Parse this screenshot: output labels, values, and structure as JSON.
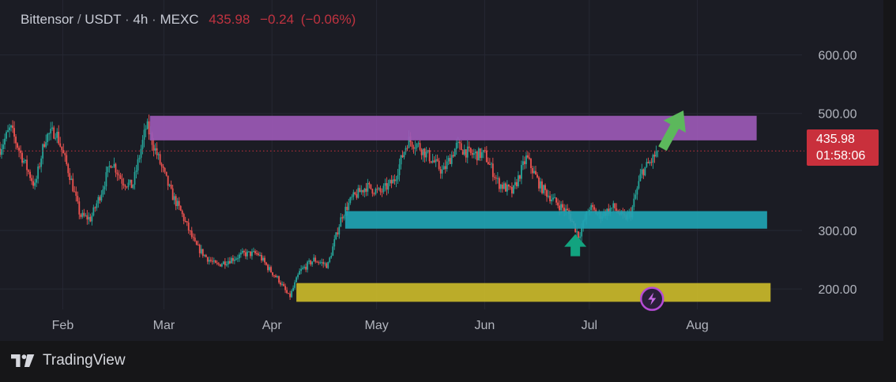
{
  "header": {
    "symbol": "Bittensor",
    "quote": "USDT",
    "interval": "4h",
    "exchange": "MEXC",
    "last_price": "435.98",
    "change": "−0.24",
    "change_pct": "(−0.06%)"
  },
  "price_tag": {
    "price": "435.98",
    "countdown": "01:58:06"
  },
  "footer": {
    "brand": "TradingView"
  },
  "colors": {
    "background": "#1b1c24",
    "up_candle": "#26a69a",
    "down_candle": "#ef5350",
    "last_price": "#c9303c",
    "zone_resistance": "#9b59b6",
    "zone_support": "#1fa3b3",
    "zone_demand": "#c9b82a",
    "arrow_up_projection": "#5cb85c",
    "arrow_up_marker": "#12a37f"
  },
  "icons": [
    "tradingview-logo-icon",
    "lightning-icon",
    "arrow-up-icon"
  ],
  "chart_data": {
    "type": "candlestick",
    "title": "Bittensor / USDT · 4h · MEXC",
    "ylim": [
      165,
      640
    ],
    "y_ticks": [
      "200.00",
      "300.00",
      "500.00",
      "600.00"
    ],
    "x_labels": [
      {
        "label": "Feb",
        "date": "2024-02-01"
      },
      {
        "label": "Mar",
        "date": "2024-03-01"
      },
      {
        "label": "Apr",
        "date": "2024-04-01"
      },
      {
        "label": "May",
        "date": "2024-05-01"
      },
      {
        "label": "Jun",
        "date": "2024-06-01"
      },
      {
        "label": "Jul",
        "date": "2024-07-01"
      },
      {
        "label": "Aug",
        "date": "2024-08-01"
      }
    ],
    "xlim": [
      "2024-01-14",
      "2024-08-31"
    ],
    "last_price": 435.98,
    "price_path": [
      [
        "2024-01-14",
        440
      ],
      [
        "2024-01-17",
        475
      ],
      [
        "2024-01-20",
        430
      ],
      [
        "2024-01-24",
        375
      ],
      [
        "2024-01-27",
        460
      ],
      [
        "2024-01-30",
        470
      ],
      [
        "2024-02-03",
        395
      ],
      [
        "2024-02-06",
        325
      ],
      [
        "2024-02-09",
        320
      ],
      [
        "2024-02-12",
        365
      ],
      [
        "2024-02-15",
        420
      ],
      [
        "2024-02-18",
        385
      ],
      [
        "2024-02-21",
        375
      ],
      [
        "2024-02-25",
        480
      ],
      [
        "2024-02-28",
        430
      ],
      [
        "2024-03-03",
        365
      ],
      [
        "2024-03-06",
        330
      ],
      [
        "2024-03-10",
        275
      ],
      [
        "2024-03-13",
        255
      ],
      [
        "2024-03-16",
        240
      ],
      [
        "2024-03-20",
        250
      ],
      [
        "2024-03-24",
        260
      ],
      [
        "2024-03-28",
        260
      ],
      [
        "2024-03-31",
        235
      ],
      [
        "2024-04-03",
        215
      ],
      [
        "2024-04-06",
        185
      ],
      [
        "2024-04-09",
        230
      ],
      [
        "2024-04-13",
        250
      ],
      [
        "2024-04-17",
        240
      ],
      [
        "2024-04-21",
        325
      ],
      [
        "2024-04-24",
        355
      ],
      [
        "2024-04-28",
        375
      ],
      [
        "2024-05-02",
        365
      ],
      [
        "2024-05-06",
        385
      ],
      [
        "2024-05-10",
        455
      ],
      [
        "2024-05-13",
        445
      ],
      [
        "2024-05-17",
        420
      ],
      [
        "2024-05-20",
        400
      ],
      [
        "2024-05-24",
        445
      ],
      [
        "2024-05-28",
        430
      ],
      [
        "2024-06-01",
        430
      ],
      [
        "2024-06-05",
        380
      ],
      [
        "2024-06-09",
        365
      ],
      [
        "2024-06-13",
        425
      ],
      [
        "2024-06-17",
        375
      ],
      [
        "2024-06-21",
        350
      ],
      [
        "2024-06-25",
        330
      ],
      [
        "2024-06-28",
        290
      ],
      [
        "2024-07-01",
        340
      ],
      [
        "2024-07-04",
        325
      ],
      [
        "2024-07-08",
        340
      ],
      [
        "2024-07-11",
        320
      ],
      [
        "2024-07-13",
        330
      ],
      [
        "2024-07-16",
        400
      ],
      [
        "2024-07-19",
        420
      ],
      [
        "2024-07-21",
        440
      ]
    ],
    "zones": [
      {
        "name": "resistance",
        "from": "2024-02-26",
        "to": "2024-08-18",
        "low": 454,
        "high": 496
      },
      {
        "name": "support",
        "from": "2024-04-22",
        "to": "2024-08-21",
        "low": 303,
        "high": 333
      },
      {
        "name": "demand",
        "from": "2024-04-08",
        "to": "2024-08-22",
        "low": 178,
        "high": 210
      }
    ],
    "annotations": [
      {
        "type": "arrow-up-projection",
        "from": [
          "2024-07-22",
          440
        ],
        "to": [
          "2024-07-28",
          505
        ]
      },
      {
        "type": "arrow-up-marker",
        "date": "2024-06-27",
        "price": 256
      },
      {
        "type": "lightning-marker",
        "date": "2024-07-19",
        "price": 183
      }
    ]
  }
}
